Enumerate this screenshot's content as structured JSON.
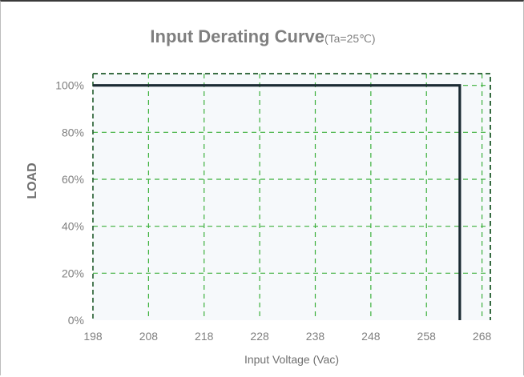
{
  "chart_data": {
    "type": "line",
    "title": "Input Derating Curve",
    "subtitle": "(Ta=25℃)",
    "xlabel": "Input Voltage (Vac)",
    "ylabel": "LOAD",
    "xlim": [
      198,
      269.5
    ],
    "ylim": [
      0,
      105
    ],
    "x_ticks": [
      198,
      208,
      218,
      228,
      238,
      248,
      258,
      268
    ],
    "x_tick_labels": [
      "198",
      "208",
      "218",
      "228",
      "238",
      "248",
      "258",
      "268"
    ],
    "y_ticks": [
      0,
      20,
      40,
      60,
      80,
      100
    ],
    "y_tick_labels": [
      "0%",
      "20%",
      "40%",
      "60%",
      "80%",
      "100%"
    ],
    "grid": true,
    "series": [
      {
        "x": [
          198,
          264,
          264
        ],
        "y": [
          100,
          100,
          0
        ]
      }
    ]
  },
  "colors": {
    "curve": "#1b2b33",
    "grid": "#3bb03b",
    "plot_background": "#f6f9fb",
    "title": "#7f7f7f",
    "tick_label": "#808080",
    "axis_label": "#6f6f6f"
  }
}
